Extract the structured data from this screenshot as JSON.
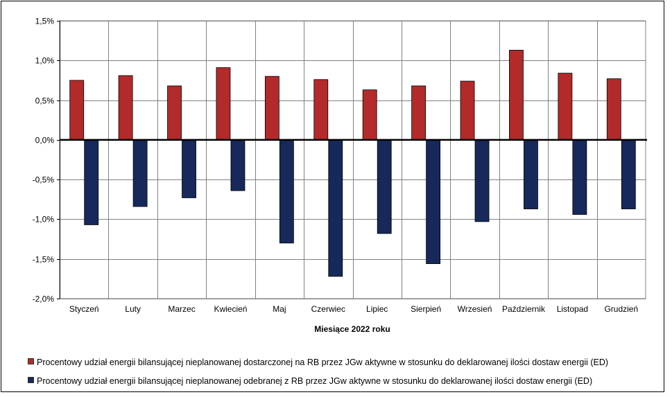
{
  "chart_data": {
    "type": "bar",
    "xlabel": "Miesiące 2022  roku",
    "ylabel": "",
    "ylim": [
      -2.0,
      1.5
    ],
    "yticks": [
      1.5,
      1.0,
      0.5,
      0.0,
      -0.5,
      -1.0,
      -1.5,
      -2.0
    ],
    "ytick_labels": [
      "1,5%",
      "1,0%",
      "0,5%",
      "0,0%",
      "-0,5%",
      "-1,0%",
      "-1,5%",
      "-2,0%"
    ],
    "grid": true,
    "legend_position": "bottom",
    "categories": [
      "Styczeń",
      "Luty",
      "Marzec",
      "Kwiecień",
      "Maj",
      "Czerwiec",
      "Lipiec",
      "Sierpień",
      "Wrzesień",
      "Październik",
      "Listopad",
      "Grudzień"
    ],
    "series": [
      {
        "name": "Procentowy udział energii bilansującej nieplanowanej dostarczonej na RB przez JGw aktywne w stosunku do deklarowanej ilości dostaw energii (ED)",
        "color": "#b22a2a",
        "values": [
          0.75,
          0.81,
          0.68,
          0.91,
          0.8,
          0.76,
          0.63,
          0.68,
          0.74,
          1.13,
          0.84,
          0.77
        ]
      },
      {
        "name": "Procentowy udział energii bilansującej nieplanowanej odebranej z RB przez JGw aktywne w stosunku do deklarowanej ilości dostaw energii (ED)",
        "color": "#16295a",
        "values": [
          -1.07,
          -0.84,
          -0.73,
          -0.64,
          -1.3,
          -1.72,
          -1.18,
          -1.56,
          -1.03,
          -0.87,
          -0.94,
          -0.87
        ]
      }
    ]
  }
}
